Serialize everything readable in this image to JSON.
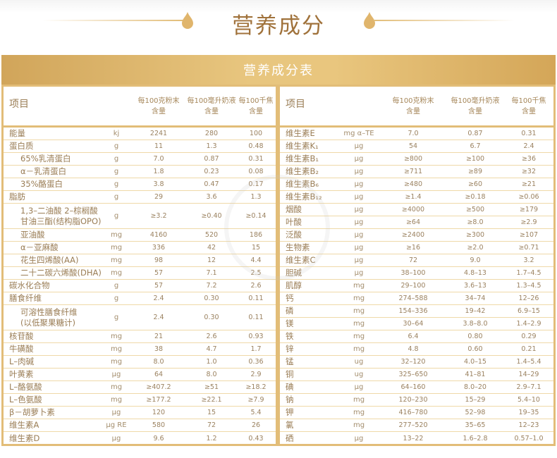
{
  "header": {
    "title": "营养成分",
    "accent_color": "#e2bd78",
    "title_color": "#a0723b"
  },
  "banner": {
    "title": "营养成分表"
  },
  "table_header": {
    "item": "项目",
    "col1": "每100克粉末含量",
    "col1_line1": "每100克粉末",
    "col1_line2": "含量",
    "col2_line1": "每100毫升奶液",
    "col2_line2": "含量",
    "col3_line1": "每100千焦",
    "col3_line2": "含量"
  },
  "left_table": [
    {
      "name": "能量",
      "unit": "kj",
      "per100g": "2241",
      "per100ml": "280",
      "per100kj": "100"
    },
    {
      "name": "蛋白质",
      "unit": "g",
      "per100g": "11",
      "per100ml": "1.3",
      "per100kj": "0.48"
    },
    {
      "name": "65%乳清蛋白",
      "unit": "g",
      "per100g": "7.0",
      "per100ml": "0.87",
      "per100kj": "0.31",
      "sub": true
    },
    {
      "name": "α－乳清蛋白",
      "unit": "g",
      "per100g": "1.8",
      "per100ml": "0.23",
      "per100kj": "0.08",
      "sub": true
    },
    {
      "name": "35%酪蛋白",
      "unit": "g",
      "per100g": "3.8",
      "per100ml": "0.47",
      "per100kj": "0.17",
      "sub": true
    },
    {
      "name": "脂肪",
      "unit": "g",
      "per100g": "29",
      "per100ml": "3.6",
      "per100kj": "1.3"
    },
    {
      "name_line1": "1,3–二油酸 2–棕榈酸",
      "name_line2": "甘油三酯(结构脂OPO)",
      "unit": "g",
      "per100g": "≥3.2",
      "per100ml": "≥0.40",
      "per100kj": "≥0.14",
      "sub": true,
      "double": true
    },
    {
      "name": "亚油酸",
      "unit": "mg",
      "per100g": "4160",
      "per100ml": "520",
      "per100kj": "186",
      "sub": true
    },
    {
      "name": "α－亚麻酸",
      "unit": "mg",
      "per100g": "336",
      "per100ml": "42",
      "per100kj": "15",
      "sub": true
    },
    {
      "name": "花生四烯酸(AA)",
      "unit": "mg",
      "per100g": "98",
      "per100ml": "12",
      "per100kj": "4.4",
      "sub": true
    },
    {
      "name": "二十二碳六烯酸(DHA)",
      "unit": "mg",
      "per100g": "57",
      "per100ml": "7.1",
      "per100kj": "2.5",
      "sub": true
    },
    {
      "name": "碳水化合物",
      "unit": "g",
      "per100g": "57",
      "per100ml": "7.2",
      "per100kj": "2.6"
    },
    {
      "name": "膳食纤维",
      "unit": "g",
      "per100g": "2.4",
      "per100ml": "0.30",
      "per100kj": "0.11"
    },
    {
      "name_line1": "可溶性膳食纤维",
      "name_line2": "(以低聚果糖计)",
      "unit": "g",
      "per100g": "2.4",
      "per100ml": "0.30",
      "per100kj": "0.11",
      "sub": true,
      "double": true
    },
    {
      "name": "核苷酸",
      "unit": "mg",
      "per100g": "21",
      "per100ml": "2.6",
      "per100kj": "0.93"
    },
    {
      "name": "牛磺酸",
      "unit": "mg",
      "per100g": "38",
      "per100ml": "4.7",
      "per100kj": "1.7"
    },
    {
      "name": "L–肉碱",
      "unit": "mg",
      "per100g": "8.0",
      "per100ml": "1.0",
      "per100kj": "0.36"
    },
    {
      "name": "叶黄素",
      "unit": "μg",
      "per100g": "64",
      "per100ml": "8.0",
      "per100kj": "2.9"
    },
    {
      "name": "L–酪氨酸",
      "unit": "mg",
      "per100g": "≥407.2",
      "per100ml": "≥51",
      "per100kj": "≥18.2"
    },
    {
      "name": "L–色氨酸",
      "unit": "mg",
      "per100g": "≥177.2",
      "per100ml": "≥22.1",
      "per100kj": "≥7.9"
    },
    {
      "name": "β－胡萝卜素",
      "unit": "μg",
      "per100g": "120",
      "per100ml": "15",
      "per100kj": "5.4"
    },
    {
      "name": "维生素A",
      "unit": "μg RE",
      "per100g": "580",
      "per100ml": "72",
      "per100kj": "26"
    },
    {
      "name": "维生素D",
      "unit": "μg",
      "per100g": "9.6",
      "per100ml": "1.2",
      "per100kj": "0.43"
    }
  ],
  "right_table": [
    {
      "name": "维生素E",
      "unit": "mg α–TE",
      "per100g": "7.0",
      "per100ml": "0.87",
      "per100kj": "0.31"
    },
    {
      "name": "维生素K₁",
      "unit": "μg",
      "per100g": "54",
      "per100ml": "6.7",
      "per100kj": "2.4"
    },
    {
      "name": "维生素B₁",
      "unit": "μg",
      "per100g": "≥800",
      "per100ml": "≥100",
      "per100kj": "≥36"
    },
    {
      "name": "维生素B₂",
      "unit": "μg",
      "per100g": "≥711",
      "per100ml": "≥89",
      "per100kj": "≥32"
    },
    {
      "name": "维生素B₆",
      "unit": "μg",
      "per100g": "≥480",
      "per100ml": "≥60",
      "per100kj": "≥21"
    },
    {
      "name": "维生素B₁₂",
      "unit": "μg",
      "per100g": "≥1.4",
      "per100ml": "≥0.18",
      "per100kj": "≥0.06"
    },
    {
      "name": "烟酸",
      "unit": "μg",
      "per100g": "≥4000",
      "per100ml": "≥500",
      "per100kj": "≥179"
    },
    {
      "name": "叶酸",
      "unit": "μg",
      "per100g": "≥64",
      "per100ml": "≥8.0",
      "per100kj": "≥2.9"
    },
    {
      "name": "泛酸",
      "unit": "μg",
      "per100g": "≥2400",
      "per100ml": "≥300",
      "per100kj": "≥107"
    },
    {
      "name": "生物素",
      "unit": "μg",
      "per100g": "≥16",
      "per100ml": "≥2.0",
      "per100kj": "≥0.71"
    },
    {
      "name": "维生素C",
      "unit": "μg",
      "per100g": "72",
      "per100ml": "9.0",
      "per100kj": "3.2"
    },
    {
      "name": "胆碱",
      "unit": "μg",
      "per100g": "38–100",
      "per100ml": "4.8–13",
      "per100kj": "1.7–4.5"
    },
    {
      "name": "肌醇",
      "unit": "mg",
      "per100g": "29–100",
      "per100ml": "3.6–13",
      "per100kj": "1.3–4.5"
    },
    {
      "name": "钙",
      "unit": "mg",
      "per100g": "274–588",
      "per100ml": "34–74",
      "per100kj": "12–26"
    },
    {
      "name": "磷",
      "unit": "mg",
      "per100g": "154–336",
      "per100ml": "19–42",
      "per100kj": "6.9–15"
    },
    {
      "name": "镁",
      "unit": "mg",
      "per100g": "30–64",
      "per100ml": "3.8–8.0",
      "per100kj": "1.4–2.9"
    },
    {
      "name": "铁",
      "unit": "mg",
      "per100g": "6.4",
      "per100ml": "0.80",
      "per100kj": "0.29"
    },
    {
      "name": "锌",
      "unit": "mg",
      "per100g": "4.8",
      "per100ml": "0.60",
      "per100kj": "0.21"
    },
    {
      "name": "锰",
      "unit": "ug",
      "per100g": "32–120",
      "per100ml": "4.0–15",
      "per100kj": "1.4–5.4"
    },
    {
      "name": "铜",
      "unit": "ug",
      "per100g": "325–650",
      "per100ml": "41–81",
      "per100kj": "14–29"
    },
    {
      "name": "碘",
      "unit": "μg",
      "per100g": "64–160",
      "per100ml": "8.0–20",
      "per100kj": "2.9–7.1"
    },
    {
      "name": "钠",
      "unit": "mg",
      "per100g": "120–230",
      "per100ml": "15–29",
      "per100kj": "5.4–10"
    },
    {
      "name": "钾",
      "unit": "mg",
      "per100g": "416–780",
      "per100ml": "52–98",
      "per100kj": "19–35"
    },
    {
      "name": "氯",
      "unit": "mg",
      "per100g": "277–520",
      "per100ml": "35–65",
      "per100kj": "12–23"
    },
    {
      "name": "硒",
      "unit": "μg",
      "per100g": "13–22",
      "per100ml": "1.6–2.8",
      "per100kj": "0.57–1.0"
    }
  ]
}
